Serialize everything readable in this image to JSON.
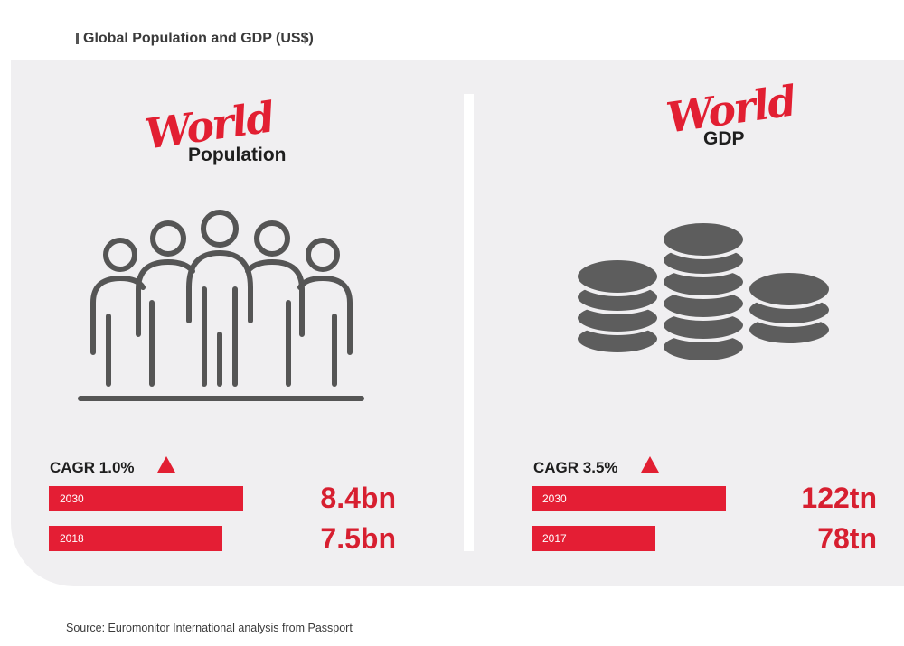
{
  "title": "Global Population and GDP (US$)",
  "source": "Source: Euromonitor International analysis from Passport",
  "colors": {
    "accent": "#e21f32",
    "icon": "#555555",
    "panel": "#f0eff1"
  },
  "population": {
    "script": "World",
    "heading": "Population",
    "icon": "people-group-icon",
    "cagr": "CAGR 1.0%"
  },
  "gdp": {
    "script": "World",
    "heading": "GDP",
    "icon": "coin-stacks-icon",
    "cagr": "CAGR 3.5%"
  },
  "chart_data": [
    {
      "type": "bar",
      "categories": [
        "2030",
        "2018"
      ],
      "values": [
        8.4,
        7.5
      ],
      "value_labels": [
        "8.4bn",
        "7.5bn"
      ],
      "xlim": [
        0,
        10.95
      ]
    },
    {
      "type": "bar",
      "categories": [
        "2030",
        "2017"
      ],
      "values": [
        122,
        78
      ],
      "value_labels": [
        "122tn",
        "78tn"
      ],
      "xlim": [
        0,
        159
      ]
    }
  ]
}
